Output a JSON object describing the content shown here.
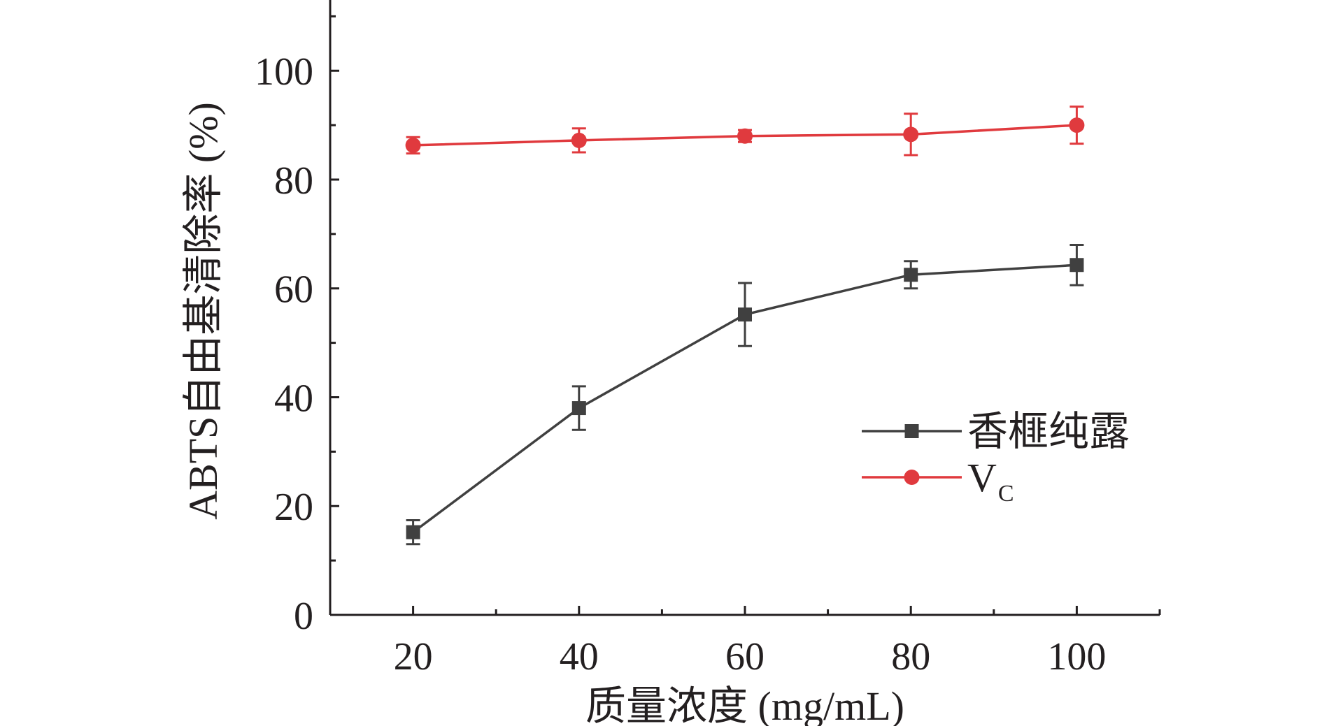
{
  "chart_data": {
    "type": "line",
    "title": "",
    "xlabel": "质量浓度 (mg/mL)",
    "ylabel": "ABTS自由基清除率 (%)",
    "x": [
      20,
      40,
      60,
      80,
      100
    ],
    "xlim": [
      10,
      110
    ],
    "ylim": [
      0,
      113
    ],
    "xticks": [
      20,
      40,
      60,
      80,
      100
    ],
    "yticks": [
      0,
      20,
      40,
      60,
      80,
      100
    ],
    "grid": false,
    "legend_position": "lower-right",
    "series": [
      {
        "name": "香榧纯露",
        "color": "#404040",
        "marker": "square",
        "values": [
          15.2,
          38.0,
          55.2,
          62.5,
          64.3
        ],
        "errors": [
          2.2,
          4.0,
          5.8,
          2.5,
          3.7
        ]
      },
      {
        "name": "VC",
        "label_main": "V",
        "label_sub": "C",
        "color": "#e03a3e",
        "marker": "circle",
        "values": [
          86.3,
          87.2,
          88.0,
          88.3,
          90.0
        ],
        "errors": [
          1.5,
          2.2,
          1.1,
          3.8,
          3.4
        ]
      }
    ]
  }
}
